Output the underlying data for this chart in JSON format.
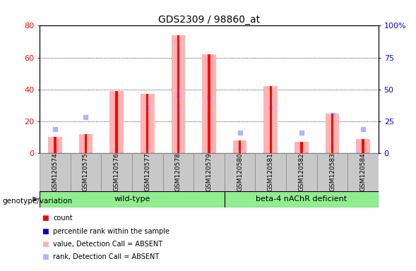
{
  "title": "GDS2309 / 98860_at",
  "samples": [
    "GSM120574",
    "GSM120575",
    "GSM120576",
    "GSM120577",
    "GSM120578",
    "GSM120579",
    "GSM120580",
    "GSM120581",
    "GSM120582",
    "GSM120583",
    "GSM120584"
  ],
  "bar_values_absent": [
    10,
    12,
    39,
    37,
    74,
    62,
    8,
    42,
    7,
    25,
    9
  ],
  "rank_absent": [
    19,
    28,
    null,
    36,
    46,
    44,
    16,
    36,
    16,
    30,
    19
  ],
  "count_red": [
    10,
    12,
    39,
    37,
    74,
    62,
    8,
    42,
    7,
    25,
    9
  ],
  "ylim_left": [
    0,
    80
  ],
  "ylim_right": [
    0,
    100
  ],
  "yticks_left": [
    0,
    20,
    40,
    60,
    80
  ],
  "yticks_right": [
    0,
    25,
    50,
    75,
    100
  ],
  "ytick_labels_right": [
    "0",
    "25",
    "50",
    "75",
    "100%"
  ],
  "bar_color_absent": "#FFB3B3",
  "rank_color_absent": "#B3B3FF",
  "bar_color_red": "#FF0000",
  "dot_color_blue": "#0000CC",
  "label_bg": "#C8C8C8",
  "group_color": "#90EE90",
  "genotype_label": "genotype/variation",
  "legend_items": [
    {
      "label": "count",
      "color": "#FF0000"
    },
    {
      "label": "percentile rank within the sample",
      "color": "#0000CC"
    },
    {
      "label": "value, Detection Call = ABSENT",
      "color": "#FFB3B3"
    },
    {
      "label": "rank, Detection Call = ABSENT",
      "color": "#B3B3FF"
    }
  ],
  "wt_count": 6,
  "b4_count": 5
}
